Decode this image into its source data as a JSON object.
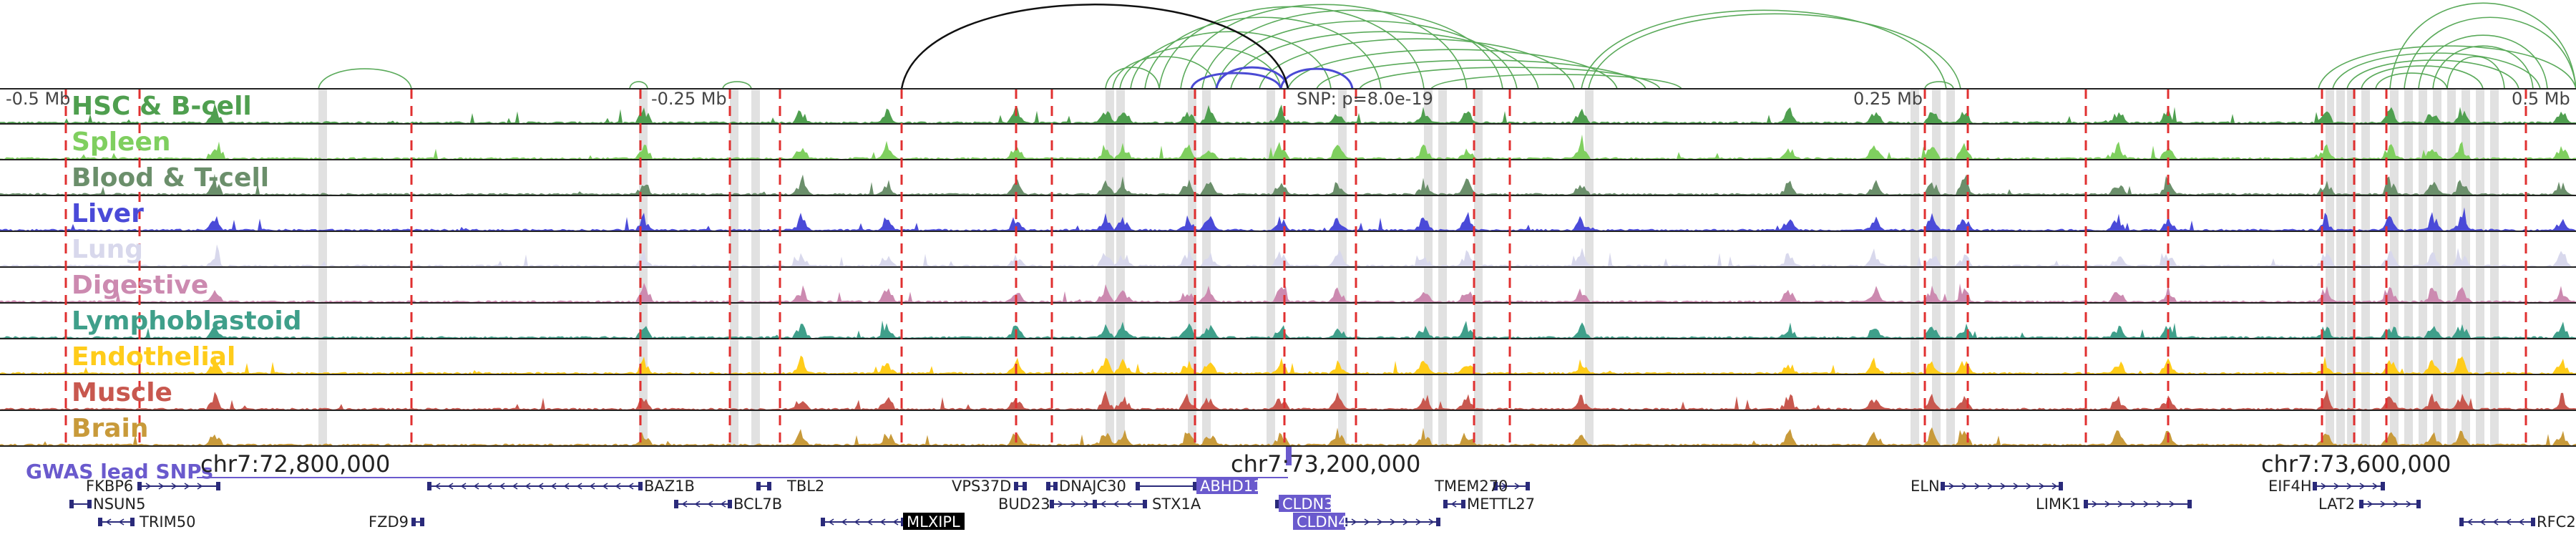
{
  "figure": {
    "offset_labels": [
      "-0.5 Mb",
      "-0.25 Mb",
      "0.25 Mb",
      "0.5 Mb"
    ],
    "snp_label": "SNP: p=8.0e-19",
    "gwas_track_label": "GWAS lead SNPs",
    "chrom_ticks": [
      "chr7:72,800,000",
      "chr7:73,200,000",
      "chr7:73,600,000"
    ]
  },
  "colors": {
    "loop_green": "#5aaa5a",
    "loop_blue": "#4a4ad4",
    "loop_black": "#111111",
    "red_dash": "#e03030",
    "gray_band": "#c8c8c8",
    "gene_blue": "#2a2a7a",
    "gwas_purple": "#6a5acd"
  },
  "tracks": [
    {
      "name": "HSC & B-cell",
      "color": "#4f9f4f"
    },
    {
      "name": "Spleen",
      "color": "#7fcf5f"
    },
    {
      "name": "Blood & T-cell",
      "color": "#6b8f6b"
    },
    {
      "name": "Liver",
      "color": "#4a4ad8"
    },
    {
      "name": "Lung",
      "color": "#d8d8ec"
    },
    {
      "name": "Digestive",
      "color": "#cc8ab0"
    },
    {
      "name": "Lymphoblastoid",
      "color": "#3f9f8a"
    },
    {
      "name": "Endothelial",
      "color": "#ffcc1a"
    },
    {
      "name": "Muscle",
      "color": "#c8584f"
    },
    {
      "name": "Brain",
      "color": "#c89a3a"
    }
  ],
  "genes": [
    {
      "name": "FKBP6",
      "highlight": false
    },
    {
      "name": "NSUN5",
      "highlight": false
    },
    {
      "name": "TRIM50",
      "highlight": false
    },
    {
      "name": "FZD9",
      "highlight": false
    },
    {
      "name": "BAZ1B",
      "highlight": false
    },
    {
      "name": "BCL7B",
      "highlight": false
    },
    {
      "name": "TBL2",
      "highlight": false
    },
    {
      "name": "MLXIPL",
      "highlight": true
    },
    {
      "name": "VPS37D",
      "highlight": false
    },
    {
      "name": "DNAJC30",
      "highlight": false
    },
    {
      "name": "BUD23",
      "highlight": false
    },
    {
      "name": "STX1A",
      "highlight": false
    },
    {
      "name": "ABHD11",
      "highlight": true
    },
    {
      "name": "CLDN3",
      "highlight": true
    },
    {
      "name": "CLDN4",
      "highlight": true
    },
    {
      "name": "TMEM270",
      "highlight": false
    },
    {
      "name": "METTL27",
      "highlight": false
    },
    {
      "name": "ELN",
      "highlight": false
    },
    {
      "name": "LIMK1",
      "highlight": false
    },
    {
      "name": "EIF4H",
      "highlight": false
    },
    {
      "name": "LAT2",
      "highlight": false
    },
    {
      "name": "RFC2",
      "highlight": false
    }
  ]
}
